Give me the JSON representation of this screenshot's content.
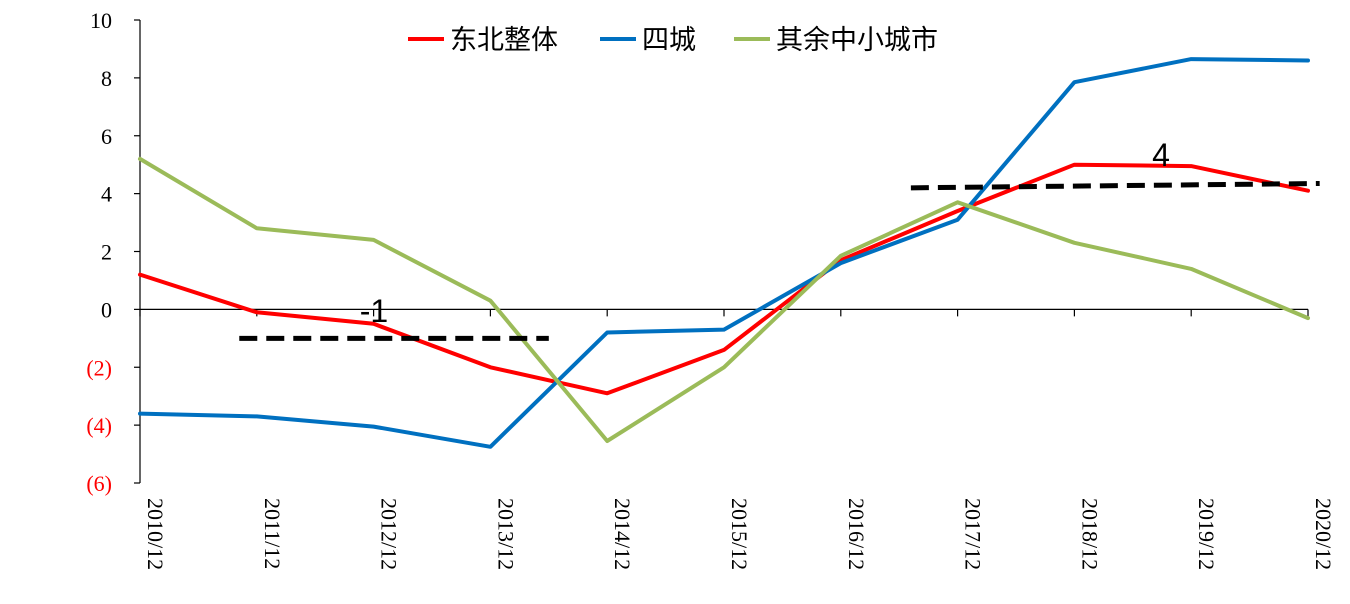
{
  "chart_data": {
    "type": "line",
    "title": "",
    "xlabel": "",
    "ylabel": "",
    "categories": [
      "2010/12",
      "2011/12",
      "2012/12",
      "2013/12",
      "2014/12",
      "2015/12",
      "2016/12",
      "2017/12",
      "2018/12",
      "2019/12",
      "2020/12"
    ],
    "ylim": [
      -6,
      10
    ],
    "yticks": [
      10,
      8,
      6,
      4,
      2,
      0,
      -2,
      -4,
      -6
    ],
    "ytick_labels": [
      "10",
      "8",
      "6",
      "4",
      "2",
      "0",
      "(2)",
      "(4)",
      "(6)"
    ],
    "negative_tick_color": "#ff0000",
    "grid": false,
    "legend_position": "top",
    "series": [
      {
        "name": "东北整体",
        "color": "#ff0000",
        "values": [
          1.2,
          -0.1,
          -0.5,
          -2.0,
          -2.9,
          -1.4,
          1.7,
          3.4,
          5.0,
          4.95,
          4.1
        ]
      },
      {
        "name": "四城",
        "color": "#0070c0",
        "values": [
          -3.6,
          -3.7,
          -4.05,
          -4.75,
          -0.8,
          -0.7,
          1.6,
          3.1,
          7.85,
          8.65,
          8.6
        ]
      },
      {
        "name": "其余中小城市",
        "color": "#9bbb59",
        "values": [
          5.2,
          2.8,
          2.4,
          0.3,
          -4.55,
          -2.0,
          1.85,
          3.7,
          2.3,
          1.4,
          -0.3
        ]
      }
    ],
    "annotations": [
      {
        "text": "-1",
        "line": {
          "x_start": 0.85,
          "x_end": 3.5,
          "y": -1
        },
        "style": "dashed",
        "color": "#000000"
      },
      {
        "text": "4",
        "line": {
          "x_start": 6.6,
          "x_end": 10.1,
          "y_start": 4.2,
          "y_end": 4.35
        },
        "style": "dashed",
        "color": "#000000"
      }
    ]
  }
}
